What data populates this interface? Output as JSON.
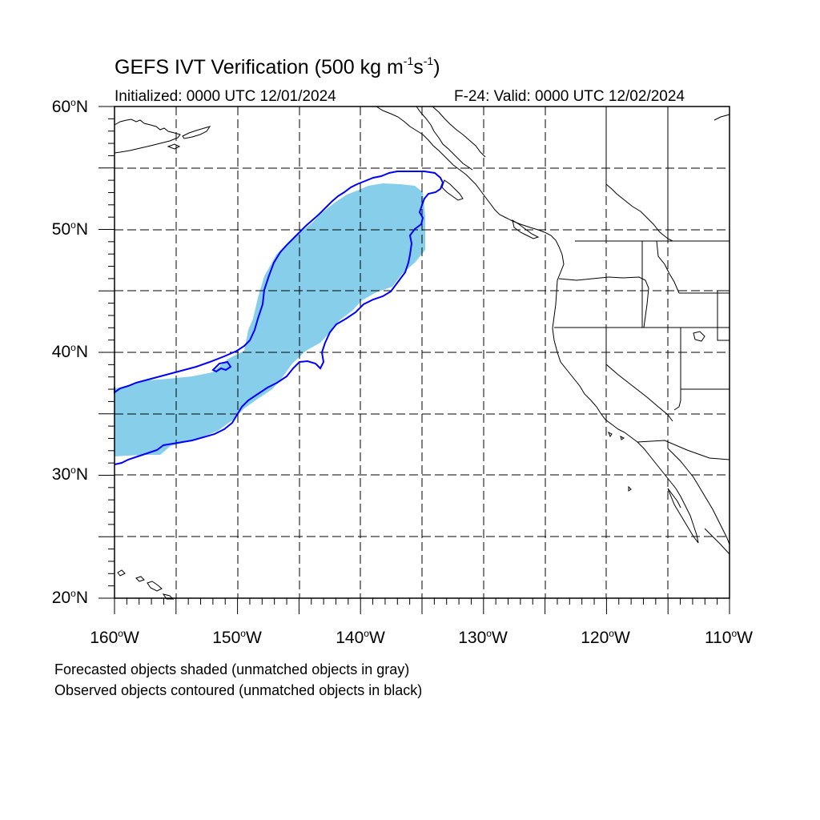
{
  "title": {
    "prefix": "GEFS IVT Verification (500 kg m",
    "exp1": "-1",
    "mid": "s",
    "exp2": "-1",
    "suffix": ")"
  },
  "initialized": "Initialized: 0000 UTC 12/01/2024",
  "valid": "F-24: Valid: 0000 UTC 12/02/2024",
  "notes": {
    "forecast": "Forecasted objects shaded (unmatched objects in gray)",
    "observed": "Observed objects contoured (unmatched objects in black)"
  },
  "lat_labels": [
    {
      "deg": "60",
      "sym": "o",
      "hem": "N"
    },
    {
      "deg": "50",
      "sym": "o",
      "hem": "N"
    },
    {
      "deg": "40",
      "sym": "o",
      "hem": "N"
    },
    {
      "deg": "30",
      "sym": "o",
      "hem": "N"
    },
    {
      "deg": "20",
      "sym": "o",
      "hem": "N"
    }
  ],
  "lon_labels": [
    {
      "deg": "160",
      "sym": "o",
      "hem": "W"
    },
    {
      "deg": "150",
      "sym": "o",
      "hem": "W"
    },
    {
      "deg": "140",
      "sym": "o",
      "hem": "W"
    },
    {
      "deg": "130",
      "sym": "o",
      "hem": "W"
    },
    {
      "deg": "120",
      "sym": "o",
      "hem": "W"
    },
    {
      "deg": "110",
      "sym": "o",
      "hem": "W"
    }
  ],
  "colors": {
    "forecast_fill": "#87ceeb",
    "observed_contour": "#0000ff",
    "grid": "#000000",
    "coast": "#000000"
  },
  "map": {
    "projection": "cylindrical equidistant",
    "lon_range": [
      -160,
      -110
    ],
    "lat_range": [
      20,
      60
    ],
    "grid_interval_deg": 5
  }
}
